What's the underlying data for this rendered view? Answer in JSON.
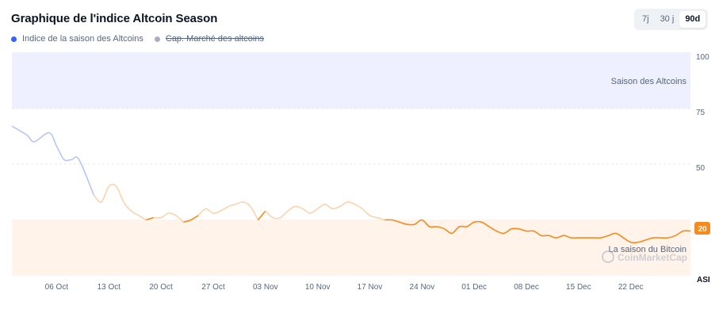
{
  "header": {
    "title": "Graphique de l'indice Altcoin Season"
  },
  "legend": [
    {
      "label": "Indice de la saison des Altcoins",
      "color": "#3861fb",
      "struck": false
    },
    {
      "label": "Cap. Marché des altcoins",
      "color": "#a6b0c3",
      "struck": true
    }
  ],
  "range_tabs": [
    {
      "label": "7j",
      "active": false
    },
    {
      "label": "30 j",
      "active": false
    },
    {
      "label": "90d",
      "active": true
    }
  ],
  "watermark": "CoinMarketCap",
  "chart_data": {
    "type": "line",
    "series": [
      {
        "name": "Indice de la saison des Altcoins"
      }
    ],
    "x_ticks": [
      "06 Oct",
      "13 Oct",
      "20 Oct",
      "27 Oct",
      "03 Nov",
      "10 Nov",
      "17 Nov",
      "24 Nov",
      "01 Dec",
      "08 Dec",
      "15 Dec",
      "22 Dec"
    ],
    "y_ticks": [
      100,
      75,
      50
    ],
    "y_axis_unit": "ASI",
    "ylim": [
      0,
      100
    ],
    "grid": true,
    "zones": [
      {
        "label": "Saison des Altcoins",
        "from": 75,
        "to": 100,
        "color": "#eef0ff"
      },
      {
        "label": "La saison du Bitcoin",
        "from": 0,
        "to": 25,
        "color": "#fff3ea"
      }
    ],
    "last_value": 20,
    "x_day_offset": [
      0,
      2,
      3,
      5,
      6,
      7,
      8,
      9,
      11,
      12,
      13,
      14,
      15,
      16,
      17,
      18,
      19,
      20,
      21,
      22,
      23,
      24,
      25,
      26,
      27,
      28,
      29,
      30,
      31,
      32,
      33,
      34,
      35,
      36,
      37,
      38,
      39,
      40,
      41,
      42,
      43,
      44,
      45,
      46,
      47,
      48,
      49,
      50,
      51,
      52,
      53,
      54,
      55,
      56,
      57,
      58,
      59,
      60,
      61,
      62,
      63,
      64,
      65,
      66,
      67,
      68,
      69,
      70,
      71,
      72,
      73,
      74,
      75,
      76,
      77,
      78,
      79,
      80,
      81,
      82,
      83,
      84,
      85,
      86,
      87,
      88,
      89,
      90,
      91
    ],
    "values": [
      67,
      63,
      60,
      64,
      58,
      52,
      52,
      52,
      36,
      33,
      40,
      40,
      33,
      29,
      27,
      25,
      26,
      26,
      28,
      27,
      24,
      25,
      27,
      30,
      28,
      29,
      31,
      32,
      33,
      31,
      25,
      29,
      26,
      26,
      29,
      31,
      30,
      28,
      30,
      32,
      30,
      31,
      33,
      32,
      30,
      27,
      26,
      25,
      25,
      24,
      23,
      23,
      25,
      22,
      22,
      21,
      19,
      22,
      22,
      24,
      24,
      22,
      20,
      19,
      21,
      21,
      20,
      20,
      18,
      18,
      17,
      18,
      17,
      17,
      17,
      17,
      17,
      18,
      19,
      17,
      15,
      15,
      16,
      17,
      17,
      17,
      18,
      20,
      20
    ]
  }
}
